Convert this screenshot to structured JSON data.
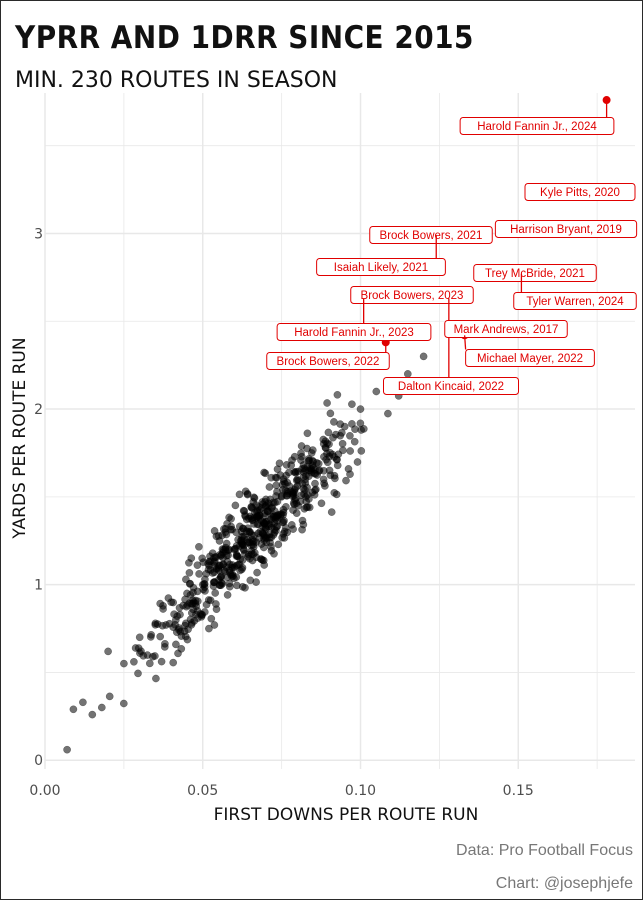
{
  "title": "YPRR AND 1DRR SINCE 2015",
  "subtitle": "MIN. 230 ROUTES IN SEASON",
  "caption_lines": [
    "Data: Pro Football Focus",
    "Chart: @josephjefe"
  ],
  "colors": {
    "points": "#000000",
    "highlight": "#e00000",
    "grid": "#e8e8e8"
  },
  "chart_data": {
    "type": "scatter",
    "xlabel": "FIRST DOWNS PER ROUTE RUN",
    "ylabel": "YARDS PER ROUTE RUN",
    "xlim": [
      0.0,
      0.187
    ],
    "ylim": [
      -0.05,
      3.8
    ],
    "x_ticks": [
      0.0,
      0.05,
      0.1,
      0.15
    ],
    "x_tick_labels": [
      "0.00",
      "0.05",
      "0.10",
      "0.15"
    ],
    "y_ticks": [
      0,
      1,
      2,
      3
    ],
    "y_tick_labels": [
      "0",
      "1",
      "2",
      "3"
    ],
    "grid": true,
    "series": [
      {
        "color": "#000000",
        "opacity": 0.55,
        "count": 600,
        "x_range": [
          0.007,
          0.125
        ],
        "note_fit": {
          "slope": 19.5,
          "intercept": 0.0
        },
        "sample_points": [
          [
            0.007,
            0.06
          ],
          [
            0.009,
            0.29
          ],
          [
            0.012,
            0.33
          ],
          [
            0.015,
            0.26
          ],
          [
            0.018,
            0.3
          ],
          [
            0.02,
            0.62
          ],
          [
            0.025,
            0.55
          ],
          [
            0.03,
            0.7
          ],
          [
            0.035,
            0.78
          ],
          [
            0.04,
            0.9
          ],
          [
            0.045,
            0.95
          ],
          [
            0.05,
            1.0
          ],
          [
            0.055,
            1.1
          ],
          [
            0.06,
            1.2
          ],
          [
            0.065,
            1.3
          ],
          [
            0.07,
            1.45
          ],
          [
            0.075,
            1.5
          ],
          [
            0.08,
            1.6
          ],
          [
            0.085,
            1.7
          ],
          [
            0.09,
            1.8
          ],
          [
            0.095,
            1.9
          ],
          [
            0.1,
            2.0
          ],
          [
            0.105,
            2.1
          ],
          [
            0.11,
            2.15
          ],
          [
            0.115,
            2.2
          ],
          [
            0.12,
            2.3
          ]
        ]
      },
      {
        "name": "highlighted",
        "color": "#e00000",
        "points": [
          {
            "label": "Harold Fannin Jr., 2024",
            "x": 0.178,
            "y": 3.76
          },
          {
            "label": "Kyle Pitts, 2020",
            "x": 0.165,
            "y": 3.26
          },
          {
            "label": "Harrison Bryant, 2019",
            "x": 0.161,
            "y": 3.05
          },
          {
            "label": "Brock Bowers, 2021",
            "x": 0.126,
            "y": 3.01
          },
          {
            "label": "Isaiah Likely, 2021",
            "x": 0.124,
            "y": 2.99
          },
          {
            "label": "Trey McBride, 2021",
            "x": 0.15,
            "y": 2.79
          },
          {
            "label": "Tyler Warren, 2024",
            "x": 0.151,
            "y": 2.77
          },
          {
            "label": "Brock Bowers, 2023",
            "x": 0.125,
            "y": 2.65
          },
          {
            "label": "Harold Fannin Jr., 2023",
            "x": 0.101,
            "y": 2.63
          },
          {
            "label": "Dalton Kincaid, 2022",
            "x": 0.128,
            "y": 2.63
          },
          {
            "label": "Mark Andrews, 2017",
            "x": 0.133,
            "y": 2.45
          },
          {
            "label": "Michael Mayer, 2022",
            "x": 0.133,
            "y": 2.42
          },
          {
            "label": "Brock Bowers, 2022",
            "x": 0.108,
            "y": 2.38
          }
        ]
      }
    ]
  }
}
